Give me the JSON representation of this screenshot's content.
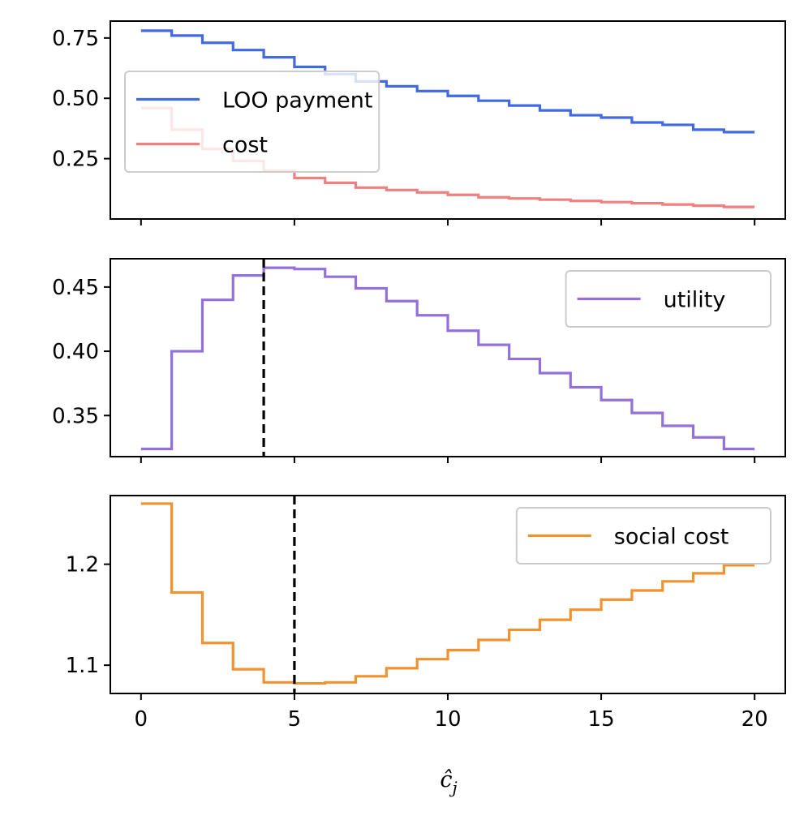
{
  "chart_data": [
    {
      "type": "line",
      "xlim": [
        -1,
        21
      ],
      "ylim": [
        0.0,
        0.82
      ],
      "yticks": [
        0.25,
        0.5,
        0.75
      ],
      "ytick_labels": [
        "0.25",
        "0.50",
        "0.75"
      ],
      "xticks": [
        0,
        5,
        10,
        15,
        20
      ],
      "xtick_labels": [
        "",
        "",
        "",
        "",
        ""
      ],
      "legend_position": "upper-left",
      "series": [
        {
          "name": "LOO payment",
          "color": "#4169e1",
          "x": [
            0,
            1,
            2,
            3,
            4,
            5,
            6,
            7,
            8,
            9,
            10,
            11,
            12,
            13,
            14,
            15,
            16,
            17,
            18,
            19,
            20
          ],
          "values": [
            0.78,
            0.76,
            0.73,
            0.7,
            0.67,
            0.63,
            0.6,
            0.57,
            0.55,
            0.53,
            0.51,
            0.49,
            0.47,
            0.45,
            0.43,
            0.42,
            0.4,
            0.39,
            0.37,
            0.36,
            0.36
          ]
        },
        {
          "name": "cost",
          "color": "#f08080",
          "x": [
            0,
            1,
            2,
            3,
            4,
            5,
            6,
            7,
            8,
            9,
            10,
            11,
            12,
            13,
            14,
            15,
            16,
            17,
            18,
            19,
            20
          ],
          "values": [
            0.46,
            0.37,
            0.29,
            0.24,
            0.2,
            0.17,
            0.15,
            0.13,
            0.12,
            0.11,
            0.1,
            0.09,
            0.085,
            0.08,
            0.075,
            0.07,
            0.065,
            0.06,
            0.055,
            0.05,
            0.05
          ]
        }
      ]
    },
    {
      "type": "line",
      "xlim": [
        -1,
        21
      ],
      "ylim": [
        0.318,
        0.472
      ],
      "yticks": [
        0.35,
        0.4,
        0.45
      ],
      "ytick_labels": [
        "0.35",
        "0.40",
        "0.45"
      ],
      "xticks": [
        0,
        5,
        10,
        15,
        20
      ],
      "xtick_labels": [
        "",
        "",
        "",
        "",
        ""
      ],
      "legend_position": "upper-right",
      "vline_x": 4,
      "series": [
        {
          "name": "utility",
          "color": "#9370db",
          "x": [
            0,
            1,
            2,
            3,
            4,
            5,
            6,
            7,
            8,
            9,
            10,
            11,
            12,
            13,
            14,
            15,
            16,
            17,
            18,
            19,
            20
          ],
          "values": [
            0.324,
            0.4,
            0.44,
            0.459,
            0.465,
            0.464,
            0.458,
            0.449,
            0.439,
            0.428,
            0.416,
            0.405,
            0.394,
            0.383,
            0.372,
            0.362,
            0.352,
            0.342,
            0.333,
            0.324,
            0.324
          ]
        }
      ]
    },
    {
      "type": "line",
      "xlim": [
        -1,
        21
      ],
      "ylim": [
        1.072,
        1.268
      ],
      "yticks": [
        1.1,
        1.2
      ],
      "ytick_labels": [
        "1.1",
        "1.2"
      ],
      "xticks": [
        0,
        5,
        10,
        15,
        20
      ],
      "xtick_labels": [
        "0",
        "5",
        "10",
        "15",
        "20"
      ],
      "xlabel": "ĉj",
      "legend_position": "upper-right",
      "vline_x": 5,
      "series": [
        {
          "name": "social cost",
          "color": "#f0922e",
          "x": [
            0,
            1,
            2,
            3,
            4,
            5,
            6,
            7,
            8,
            9,
            10,
            11,
            12,
            13,
            14,
            15,
            16,
            17,
            18,
            19,
            20
          ],
          "values": [
            1.26,
            1.172,
            1.122,
            1.096,
            1.083,
            1.082,
            1.083,
            1.089,
            1.097,
            1.106,
            1.115,
            1.125,
            1.135,
            1.145,
            1.155,
            1.165,
            1.174,
            1.183,
            1.191,
            1.199,
            1.199
          ]
        }
      ]
    }
  ]
}
